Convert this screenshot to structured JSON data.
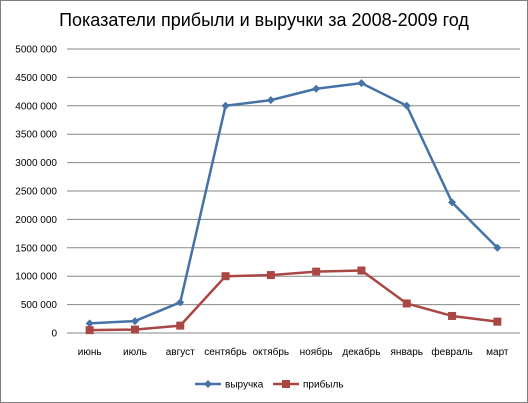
{
  "chart_data": {
    "type": "line",
    "title": "Показатели прибыли и выручки за 2008-2009 год",
    "xlabel": "",
    "ylabel": "",
    "categories": [
      "июнь",
      "июль",
      "август",
      "сентябрь",
      "октябрь",
      "ноябрь",
      "декабрь",
      "январь",
      "февраль",
      "март"
    ],
    "yticks": [
      "0",
      "500 000",
      "1000 000",
      "1500 000",
      "2000 000",
      "2500 000",
      "3000 000",
      "3500 000",
      "4000 000",
      "4500 000",
      "5000 000"
    ],
    "ylim": [
      0,
      5000000
    ],
    "grid": true,
    "legend_position": "bottom",
    "series": [
      {
        "name": "выручка",
        "color": "#4572A7",
        "marker": "diamond",
        "values": [
          170000,
          210000,
          540000,
          4000000,
          4100000,
          4300000,
          4400000,
          4000000,
          2300000,
          1500000
        ]
      },
      {
        "name": "прибыль",
        "color": "#AA4643",
        "marker": "square",
        "values": [
          50000,
          60000,
          130000,
          1000000,
          1020000,
          1080000,
          1100000,
          520000,
          300000,
          200000
        ]
      }
    ]
  }
}
